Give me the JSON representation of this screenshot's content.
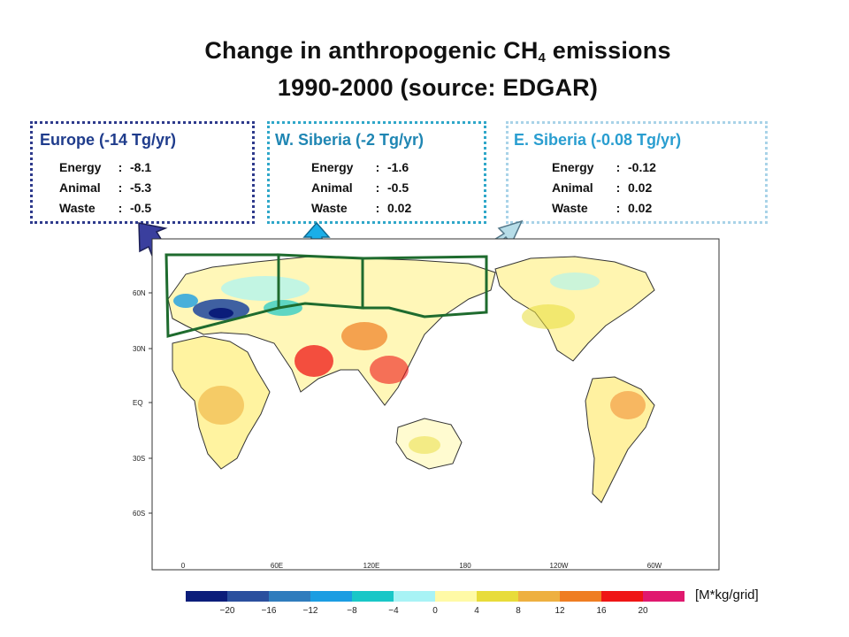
{
  "title": {
    "line1_prefix": "Change in anthropogenic CH",
    "line1_sub": "4",
    "line1_suffix": " emissions",
    "line2": "1990-2000 (source: EDGAR)"
  },
  "regions": [
    {
      "id": "europe",
      "title": "Europe (-14 Tg/yr)",
      "color": "#2e3a8c",
      "rows": [
        {
          "label": "Energy",
          "value": "-8.1"
        },
        {
          "label": "Animal",
          "value": "-5.3"
        },
        {
          "label": "Waste",
          "value": "-0.5"
        }
      ]
    },
    {
      "id": "w-siberia",
      "title": "W. Siberia (-2 Tg/yr)",
      "color": "#2fa7c9",
      "rows": [
        {
          "label": "Energy",
          "value": "-1.6"
        },
        {
          "label": "Animal",
          "value": "-0.5"
        },
        {
          "label": "Waste",
          "value": "0.02"
        }
      ]
    },
    {
      "id": "e-siberia",
      "title": "E. Siberia (-0.08 Tg/yr)",
      "color": "#a9d3e8",
      "rows": [
        {
          "label": "Energy",
          "value": "-0.12"
        },
        {
          "label": "Animal",
          "value": "0.02"
        },
        {
          "label": "Waste",
          "value": "0.02"
        }
      ]
    }
  ],
  "map": {
    "lat_labels": [
      "60N",
      "30N",
      "EQ",
      "30S",
      "60S"
    ],
    "lon_labels": [
      "0",
      "60E",
      "120E",
      "180",
      "120W",
      "60W"
    ]
  },
  "colorbar": {
    "units": "[M*kg/grid]",
    "tick_labels": [
      "−20",
      "−16",
      "−12",
      "−8",
      "−4",
      "0",
      "4",
      "8",
      "12",
      "16",
      "20"
    ],
    "colors": [
      "#0b1d7a",
      "#2a4f9e",
      "#2f7cbd",
      "#1b9de2",
      "#19c7c7",
      "#a8f3f5",
      "#fffaa6",
      "#e8dc3a",
      "#eeb040",
      "#ef7d22",
      "#ef1515",
      "#e0186e"
    ]
  }
}
